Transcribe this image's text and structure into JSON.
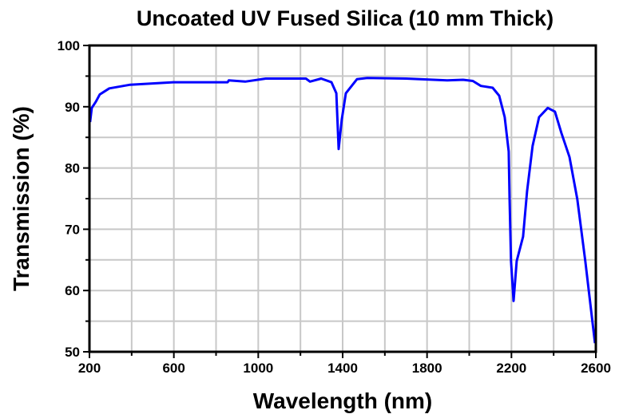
{
  "chart_data": {
    "type": "line",
    "title": "Uncoated UV Fused Silica (10 mm Thick)",
    "xlabel": "Wavelength (nm)",
    "ylabel": "Transmission (%)",
    "xlim": [
      200,
      2600
    ],
    "ylim": [
      50,
      100
    ],
    "xticks": [
      200,
      600,
      1000,
      1400,
      1800,
      2200,
      2600
    ],
    "yticks": [
      50,
      60,
      70,
      80,
      90,
      100
    ],
    "x_minor_step": 200,
    "y_minor_step": 5,
    "grid": true,
    "legend": "none",
    "line_color": "#0000ff",
    "grid_color": "#c8c8c8",
    "series": [
      {
        "x": [
          203,
          211,
          230,
          249,
          294,
          393,
          597,
          855,
          860,
          938,
          1036,
          1226,
          1245,
          1298,
          1347,
          1370,
          1381,
          1396,
          1415,
          1468,
          1517,
          1700,
          1896,
          1971,
          2017,
          2055,
          2111,
          2142,
          2168,
          2187,
          2191,
          2198,
          2210,
          2225,
          2255,
          2274,
          2300,
          2331,
          2372,
          2406,
          2437,
          2475,
          2512,
          2550,
          2596
        ],
        "y": [
          87.5,
          89.8,
          90.8,
          92.0,
          93.0,
          93.6,
          94.0,
          94.0,
          94.3,
          94.1,
          94.6,
          94.6,
          94.1,
          94.6,
          94.0,
          92.2,
          83.1,
          87.9,
          92.2,
          94.5,
          94.7,
          94.6,
          94.3,
          94.4,
          94.2,
          93.4,
          93.1,
          91.8,
          88.3,
          82.7,
          74.9,
          64.8,
          58.3,
          64.8,
          68.8,
          76.2,
          83.6,
          88.3,
          89.8,
          89.2,
          85.7,
          81.8,
          74.9,
          64.8,
          51.4
        ]
      }
    ]
  }
}
